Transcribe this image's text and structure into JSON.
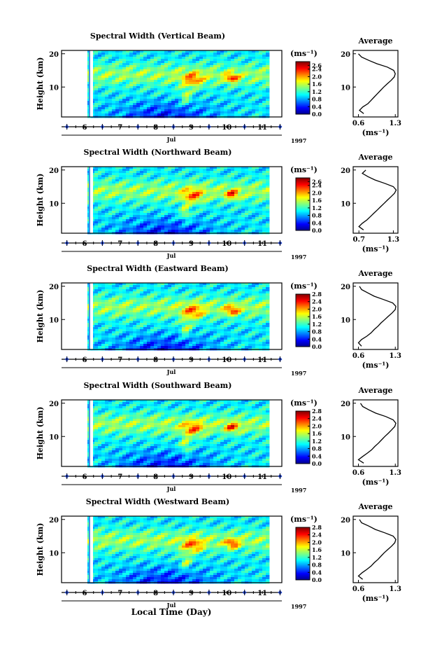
{
  "figure": {
    "xlabel": "Local Time (Day)",
    "month": "Jul",
    "year": "1997"
  },
  "chart_data": [
    {
      "type": "heatmap",
      "title": "Spectral Width (Vertical Beam)",
      "ylabel": "Height (km)",
      "xlabel": "Local Time (Day)",
      "x_ticks": [
        "6",
        "7",
        "8",
        "9",
        "10",
        "11"
      ],
      "y_ticks": [
        "10",
        "20"
      ],
      "xlim": [
        5.35,
        11.55
      ],
      "ylim": [
        1,
        21
      ],
      "colorbar": {
        "label": "(ms⁻¹)",
        "ticks": [
          "2.6",
          "2.4",
          "2.0",
          "1.6",
          "1.2",
          "0.8",
          "0.4",
          "0.0"
        ],
        "range": [
          0.0,
          2.8
        ]
      },
      "average_profile": {
        "title": "Average",
        "xlabel": "(ms⁻¹)",
        "x_ticks": [
          "0.6",
          "1.3"
        ],
        "y_ticks": [
          "10",
          "20"
        ],
        "xlim": [
          0.5,
          1.35
        ],
        "height_km": [
          2,
          3,
          4,
          5,
          6,
          7,
          8,
          9,
          10,
          11,
          12,
          13,
          14,
          15,
          16,
          17,
          18,
          19,
          20
        ],
        "values": [
          0.7,
          0.62,
          0.68,
          0.78,
          0.84,
          0.9,
          0.96,
          1.02,
          1.08,
          1.15,
          1.22,
          1.28,
          1.3,
          1.27,
          1.15,
          0.95,
          0.8,
          0.66,
          0.6
        ]
      }
    },
    {
      "type": "heatmap",
      "title": "Spectral Width (Northward Beam)",
      "ylabel": "Height (km)",
      "xlabel": "Local Time (Day)",
      "x_ticks": [
        "6",
        "7",
        "8",
        "9",
        "10",
        "11"
      ],
      "y_ticks": [
        "10",
        "20"
      ],
      "xlim": [
        5.35,
        11.55
      ],
      "ylim": [
        1,
        21
      ],
      "colorbar": {
        "label": "(ms⁻¹)",
        "ticks": [
          "2.6",
          "2.4",
          "2.0",
          "1.6",
          "1.2",
          "0.8",
          "0.4",
          "0.0"
        ],
        "range": [
          0.0,
          2.8
        ]
      },
      "average_profile": {
        "title": "Average",
        "xlabel": "(ms⁻¹)",
        "x_ticks": [
          "0.7",
          "1.3"
        ],
        "y_ticks": [
          "10",
          "20"
        ],
        "xlim": [
          0.6,
          1.38
        ],
        "height_km": [
          2,
          3,
          4,
          5,
          6,
          7,
          8,
          9,
          10,
          11,
          12,
          13,
          14,
          15,
          16,
          17,
          18,
          19,
          20
        ],
        "values": [
          0.78,
          0.7,
          0.76,
          0.84,
          0.9,
          0.96,
          1.02,
          1.08,
          1.14,
          1.2,
          1.26,
          1.32,
          1.35,
          1.3,
          1.15,
          0.98,
          0.86,
          0.76,
          0.82
        ]
      }
    },
    {
      "type": "heatmap",
      "title": "Spectral Width (Eastward Beam)",
      "ylabel": "Height (km)",
      "xlabel": "Local Time (Day)",
      "x_ticks": [
        "6",
        "7",
        "8",
        "9",
        "10",
        "11"
      ],
      "y_ticks": [
        "10",
        "20"
      ],
      "xlim": [
        5.35,
        11.55
      ],
      "ylim": [
        1,
        21
      ],
      "colorbar": {
        "label": "(ms⁻¹)",
        "ticks": [
          "2.8",
          "2.4",
          "2.0",
          "1.6",
          "1.2",
          "0.8",
          "0.4",
          "0.0"
        ],
        "range": [
          0.0,
          2.8
        ]
      },
      "average_profile": {
        "title": "Average",
        "xlabel": "(ms⁻¹)",
        "x_ticks": [
          "0.6",
          "1.3"
        ],
        "y_ticks": [
          "10",
          "20"
        ],
        "xlim": [
          0.5,
          1.35
        ],
        "height_km": [
          2,
          3,
          4,
          5,
          6,
          7,
          8,
          9,
          10,
          11,
          12,
          13,
          14,
          15,
          16,
          17,
          18,
          19,
          20
        ],
        "values": [
          0.66,
          0.6,
          0.66,
          0.76,
          0.84,
          0.9,
          0.97,
          1.03,
          1.1,
          1.17,
          1.24,
          1.3,
          1.31,
          1.25,
          1.08,
          0.9,
          0.78,
          0.66,
          0.62
        ]
      }
    },
    {
      "type": "heatmap",
      "title": "Spectral Width (Southward Beam)",
      "ylabel": "Height (km)",
      "xlabel": "Local Time (Day)",
      "x_ticks": [
        "6",
        "7",
        "8",
        "9",
        "10",
        "11"
      ],
      "y_ticks": [
        "10",
        "20"
      ],
      "xlim": [
        5.35,
        11.55
      ],
      "ylim": [
        1,
        21
      ],
      "colorbar": {
        "label": "(ms⁻¹)",
        "ticks": [
          "2.8",
          "2.4",
          "2.0",
          "1.6",
          "1.2",
          "0.8",
          "0.4",
          "0.0"
        ],
        "range": [
          0.0,
          2.8
        ]
      },
      "average_profile": {
        "title": "Average",
        "xlabel": "(ms⁻¹)",
        "x_ticks": [
          "0.6",
          "1.3"
        ],
        "y_ticks": [
          "10",
          "20"
        ],
        "xlim": [
          0.5,
          1.35
        ],
        "height_km": [
          2,
          3,
          4,
          5,
          6,
          7,
          8,
          9,
          10,
          11,
          12,
          13,
          14,
          15,
          16,
          17,
          18,
          19,
          20
        ],
        "values": [
          0.7,
          0.6,
          0.68,
          0.77,
          0.85,
          0.91,
          0.98,
          1.04,
          1.1,
          1.17,
          1.23,
          1.29,
          1.31,
          1.26,
          1.12,
          0.93,
          0.8,
          0.68,
          0.64
        ]
      }
    },
    {
      "type": "heatmap",
      "title": "Spectral Width (Westward Beam)",
      "ylabel": "Height (km)",
      "xlabel": "Local Time (Day)",
      "x_ticks": [
        "6",
        "7",
        "8",
        "9",
        "10",
        "11"
      ],
      "y_ticks": [
        "10",
        "20"
      ],
      "xlim": [
        5.35,
        11.55
      ],
      "ylim": [
        1,
        21
      ],
      "colorbar": {
        "label": "(ms⁻¹)",
        "ticks": [
          "2.8",
          "2.4",
          "2.0",
          "1.6",
          "1.2",
          "0.8",
          "0.4",
          "0.0"
        ],
        "range": [
          0.0,
          2.8
        ]
      },
      "average_profile": {
        "title": "Average",
        "xlabel": "(ms⁻¹)",
        "x_ticks": [
          "0.6",
          "1.3"
        ],
        "y_ticks": [
          "10",
          "20"
        ],
        "xlim": [
          0.5,
          1.35
        ],
        "height_km": [
          2,
          3,
          4,
          5,
          6,
          7,
          8,
          9,
          10,
          11,
          12,
          13,
          14,
          15,
          16,
          17,
          18,
          19,
          20
        ],
        "values": [
          0.68,
          0.6,
          0.67,
          0.76,
          0.84,
          0.9,
          0.97,
          1.03,
          1.09,
          1.16,
          1.23,
          1.29,
          1.31,
          1.26,
          1.1,
          0.92,
          0.8,
          0.66,
          0.62
        ]
      }
    }
  ]
}
